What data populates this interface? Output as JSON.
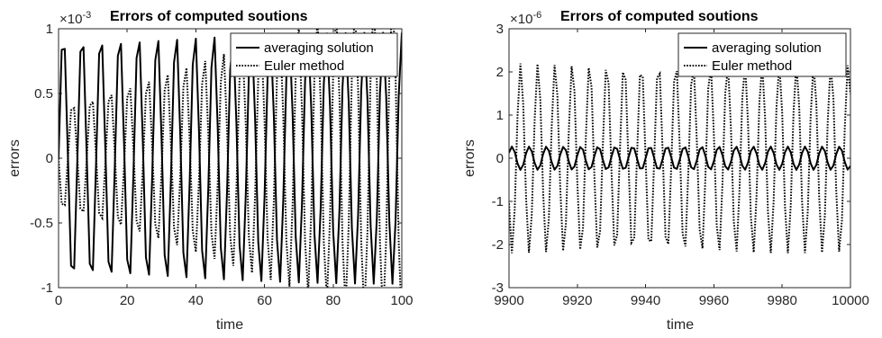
{
  "chart_data": [
    {
      "type": "line",
      "title": "Errors of computed soutions",
      "xlabel": "time",
      "ylabel": "errors",
      "y_exponent": {
        "base": "10",
        "power": "-3"
      },
      "xlim": [
        0,
        100
      ],
      "ylim": [
        -1,
        1
      ],
      "x_ticks": [
        0,
        20,
        40,
        60,
        80,
        100
      ],
      "y_ticks": [
        -1,
        -0.5,
        0,
        0.5,
        1
      ],
      "x_tick_labels": [
        "0",
        "20",
        "40",
        "60",
        "80",
        "100"
      ],
      "y_tick_labels": [
        "-1",
        "-0.5",
        "0",
        "0.5",
        "1"
      ],
      "legend_position": "top-right",
      "series": [
        {
          "name": "averaging solution",
          "style": "solid",
          "period": 5.48,
          "amplitude": 0.97,
          "phase": 0.0,
          "amplitude_growth": 0,
          "x_start": 0,
          "x_end": 100,
          "samples": 110
        },
        {
          "name": "Euler method",
          "style": "dotted",
          "period": 5.48,
          "amplitude": 0.4,
          "phase": 3.1416,
          "amplitude_growth": 0.9,
          "x_start": 0,
          "x_end": 100,
          "samples": 110
        }
      ]
    },
    {
      "type": "line",
      "title": "Errors of computed soutions",
      "xlabel": "time",
      "ylabel": "errors",
      "y_exponent": {
        "base": "10",
        "power": "-6"
      },
      "xlim": [
        9900,
        10000
      ],
      "ylim": [
        -3,
        3
      ],
      "x_ticks": [
        9900,
        9920,
        9940,
        9960,
        9980,
        10000
      ],
      "y_ticks": [
        -3,
        -2,
        -1,
        0,
        1,
        2,
        3
      ],
      "x_tick_labels": [
        "9900",
        "9920",
        "9940",
        "9960",
        "9980",
        "10000"
      ],
      "y_tick_labels": [
        "-3",
        "-2",
        "-1",
        "0",
        "1",
        "2",
        "3"
      ],
      "legend_position": "top-right",
      "series": [
        {
          "name": "averaging solution",
          "style": "solid",
          "period": 5.05,
          "amplitude": 0.27,
          "phase": 0.5,
          "amplitude_growth": 0,
          "x_start": 9900,
          "x_end": 10000,
          "samples": 120
        },
        {
          "name": "Euler method",
          "style": "dotted",
          "period": 5.05,
          "amplitude": 2.2,
          "phase": 3.64,
          "amplitude_growth": 0,
          "x_start": 9900,
          "x_end": 10000,
          "samples": 120
        }
      ]
    }
  ]
}
